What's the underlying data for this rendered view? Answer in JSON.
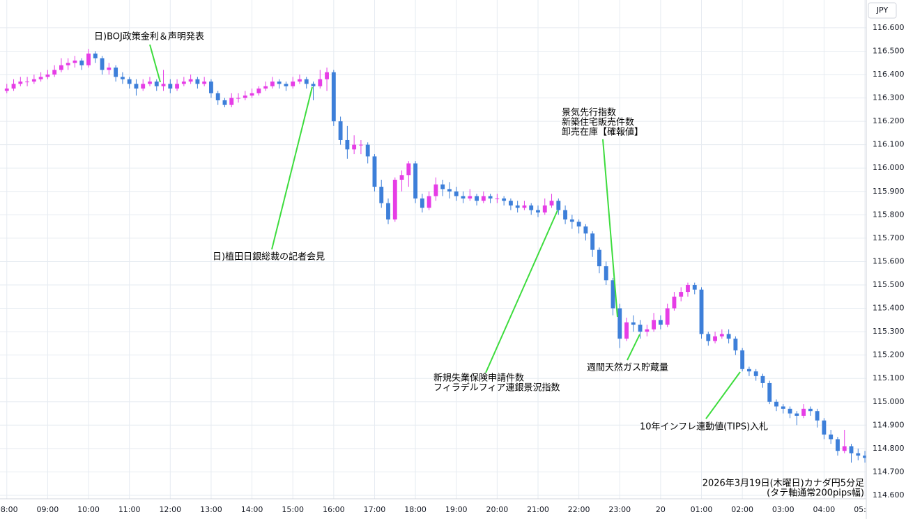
{
  "chart_data": {
    "type": "candlestick",
    "y_axis_label": "JPY",
    "up_color": "#e63de6",
    "down_color": "#3d7fd9",
    "grid": true,
    "xlim": [
      -10,
      1262
    ],
    "ylim": [
      114.585,
      116.719
    ],
    "xticks": [
      {
        "value": 0,
        "label": "08:00"
      },
      {
        "value": 60,
        "label": "09:00"
      },
      {
        "value": 120,
        "label": "10:00"
      },
      {
        "value": 180,
        "label": "11:00"
      },
      {
        "value": 240,
        "label": "12:00"
      },
      {
        "value": 300,
        "label": "13:00"
      },
      {
        "value": 360,
        "label": "14:00"
      },
      {
        "value": 420,
        "label": "15:00"
      },
      {
        "value": 480,
        "label": "16:00"
      },
      {
        "value": 540,
        "label": "17:00"
      },
      {
        "value": 600,
        "label": "18:00"
      },
      {
        "value": 660,
        "label": "19:00"
      },
      {
        "value": 720,
        "label": "20:00"
      },
      {
        "value": 780,
        "label": "21:00"
      },
      {
        "value": 840,
        "label": "22:00"
      },
      {
        "value": 900,
        "label": "23:00"
      },
      {
        "value": 960,
        "label": "20"
      },
      {
        "value": 1020,
        "label": "01:00"
      },
      {
        "value": 1080,
        "label": "02:00"
      },
      {
        "value": 1140,
        "label": "03:00"
      },
      {
        "value": 1200,
        "label": "04:00"
      },
      {
        "value": 1260,
        "label": "05:00"
      }
    ],
    "yticks": [
      {
        "value": 114.6,
        "label": "114.600"
      },
      {
        "value": 114.7,
        "label": "114.700"
      },
      {
        "value": 114.8,
        "label": "114.800"
      },
      {
        "value": 114.9,
        "label": "114.900"
      },
      {
        "value": 115.0,
        "label": "115.000"
      },
      {
        "value": 115.1,
        "label": "115.100"
      },
      {
        "value": 115.2,
        "label": "115.200"
      },
      {
        "value": 115.3,
        "label": "115.300"
      },
      {
        "value": 115.4,
        "label": "115.400"
      },
      {
        "value": 115.5,
        "label": "115.500"
      },
      {
        "value": 115.6,
        "label": "115.600"
      },
      {
        "value": 115.7,
        "label": "115.700"
      },
      {
        "value": 115.8,
        "label": "115.800"
      },
      {
        "value": 115.9,
        "label": "115.900"
      },
      {
        "value": 116.0,
        "label": "116.000"
      },
      {
        "value": 116.1,
        "label": "116.100"
      },
      {
        "value": 116.2,
        "label": "116.200"
      },
      {
        "value": 116.3,
        "label": "116.300"
      },
      {
        "value": 116.4,
        "label": "116.400"
      },
      {
        "value": 116.5,
        "label": "116.500"
      },
      {
        "value": 116.6,
        "label": "116.600"
      }
    ],
    "x": [
      0,
      10,
      20,
      30,
      40,
      50,
      60,
      70,
      80,
      90,
      100,
      110,
      120,
      130,
      140,
      150,
      160,
      170,
      180,
      190,
      200,
      210,
      220,
      230,
      240,
      250,
      260,
      270,
      280,
      290,
      300,
      310,
      320,
      330,
      340,
      350,
      360,
      370,
      380,
      390,
      400,
      410,
      420,
      430,
      440,
      450,
      460,
      470,
      480,
      490,
      500,
      510,
      520,
      530,
      540,
      550,
      560,
      570,
      580,
      590,
      600,
      610,
      620,
      630,
      640,
      650,
      660,
      670,
      680,
      690,
      700,
      710,
      720,
      730,
      740,
      750,
      760,
      770,
      780,
      790,
      800,
      810,
      820,
      830,
      840,
      850,
      860,
      870,
      880,
      890,
      900,
      910,
      920,
      930,
      940,
      950,
      960,
      970,
      980,
      990,
      1000,
      1010,
      1020,
      1030,
      1040,
      1050,
      1060,
      1070,
      1080,
      1090,
      1100,
      1110,
      1120,
      1130,
      1140,
      1150,
      1160,
      1170,
      1180,
      1190,
      1200,
      1210,
      1220,
      1230,
      1240,
      1250,
      1260
    ],
    "candles": [
      [
        116.33,
        116.36,
        116.32,
        116.34
      ],
      [
        116.34,
        116.38,
        116.33,
        116.36
      ],
      [
        116.36,
        116.39,
        116.35,
        116.37
      ],
      [
        116.37,
        116.39,
        116.35,
        116.37
      ],
      [
        116.37,
        116.4,
        116.36,
        116.38
      ],
      [
        116.38,
        116.41,
        116.37,
        116.39
      ],
      [
        116.39,
        116.42,
        116.38,
        116.4
      ],
      [
        116.4,
        116.44,
        116.39,
        116.42
      ],
      [
        116.42,
        116.47,
        116.41,
        116.44
      ],
      [
        116.44,
        116.47,
        116.42,
        116.45
      ],
      [
        116.45,
        116.48,
        116.43,
        116.46
      ],
      [
        116.46,
        116.47,
        116.42,
        116.44
      ],
      [
        116.44,
        116.51,
        116.43,
        116.49
      ],
      [
        116.49,
        116.5,
        116.45,
        116.47
      ],
      [
        116.47,
        116.48,
        116.4,
        116.42
      ],
      [
        116.42,
        116.45,
        116.4,
        116.43
      ],
      [
        116.43,
        116.44,
        116.37,
        116.39
      ],
      [
        116.39,
        116.41,
        116.36,
        116.38
      ],
      [
        116.38,
        116.39,
        116.34,
        116.36
      ],
      [
        116.36,
        116.38,
        116.31,
        116.34
      ],
      [
        116.34,
        116.38,
        116.33,
        116.36
      ],
      [
        116.36,
        116.39,
        116.35,
        116.37
      ],
      [
        116.37,
        116.38,
        116.33,
        116.35
      ],
      [
        116.35,
        116.42,
        116.33,
        116.36
      ],
      [
        116.36,
        116.38,
        116.32,
        116.34
      ],
      [
        116.34,
        116.38,
        116.33,
        116.36
      ],
      [
        116.36,
        116.39,
        116.35,
        116.37
      ],
      [
        116.37,
        116.4,
        116.36,
        116.38
      ],
      [
        116.38,
        116.39,
        116.34,
        116.36
      ],
      [
        116.36,
        116.39,
        116.35,
        116.37
      ],
      [
        116.37,
        116.38,
        116.3,
        116.32
      ],
      [
        116.32,
        116.33,
        116.27,
        116.29
      ],
      [
        116.29,
        116.3,
        116.26,
        116.27
      ],
      [
        116.27,
        116.32,
        116.26,
        116.3
      ],
      [
        116.3,
        116.32,
        116.28,
        116.3
      ],
      [
        116.3,
        116.33,
        116.29,
        116.31
      ],
      [
        116.31,
        116.34,
        116.3,
        116.32
      ],
      [
        116.32,
        116.35,
        116.31,
        116.34
      ],
      [
        116.34,
        116.37,
        116.33,
        116.35
      ],
      [
        116.35,
        116.39,
        116.34,
        116.37
      ],
      [
        116.37,
        116.38,
        116.34,
        116.36
      ],
      [
        116.36,
        116.37,
        116.33,
        116.35
      ],
      [
        116.35,
        116.39,
        116.34,
        116.37
      ],
      [
        116.37,
        116.4,
        116.36,
        116.38
      ],
      [
        116.38,
        116.39,
        116.34,
        116.36
      ],
      [
        116.36,
        116.37,
        116.29,
        116.35
      ],
      [
        116.35,
        116.42,
        116.34,
        116.38
      ],
      [
        116.38,
        116.43,
        116.33,
        116.41
      ],
      [
        116.41,
        116.42,
        116.18,
        116.2
      ],
      [
        116.2,
        116.22,
        116.1,
        116.12
      ],
      [
        116.12,
        116.18,
        116.04,
        116.08
      ],
      [
        116.08,
        116.14,
        116.06,
        116.1
      ],
      [
        116.1,
        116.12,
        116.06,
        116.1
      ],
      [
        116.1,
        116.11,
        116.02,
        116.05
      ],
      [
        116.05,
        116.06,
        115.9,
        115.92
      ],
      [
        115.92,
        115.95,
        115.83,
        115.85
      ],
      [
        115.85,
        115.87,
        115.76,
        115.78
      ],
      [
        115.78,
        115.96,
        115.77,
        115.95
      ],
      [
        115.95,
        115.99,
        115.9,
        115.97
      ],
      [
        115.97,
        116.03,
        115.92,
        116.02
      ],
      [
        116.02,
        116.03,
        115.85,
        115.87
      ],
      [
        115.87,
        115.89,
        115.81,
        115.83
      ],
      [
        115.83,
        115.9,
        115.82,
        115.88
      ],
      [
        115.88,
        115.96,
        115.86,
        115.93
      ],
      [
        115.93,
        115.95,
        115.88,
        115.91
      ],
      [
        115.91,
        115.94,
        115.87,
        115.9
      ],
      [
        115.9,
        115.92,
        115.86,
        115.88
      ],
      [
        115.88,
        115.9,
        115.85,
        115.87
      ],
      [
        115.87,
        115.91,
        115.86,
        115.88
      ],
      [
        115.88,
        115.89,
        115.84,
        115.86
      ],
      [
        115.86,
        115.9,
        115.85,
        115.88
      ],
      [
        115.88,
        115.89,
        115.85,
        115.87
      ],
      [
        115.87,
        115.89,
        115.85,
        115.87
      ],
      [
        115.87,
        115.88,
        115.84,
        115.86
      ],
      [
        115.86,
        115.87,
        115.82,
        115.84
      ],
      [
        115.84,
        115.86,
        115.81,
        115.83
      ],
      [
        115.83,
        115.86,
        115.82,
        115.84
      ],
      [
        115.84,
        115.85,
        115.8,
        115.82
      ],
      [
        115.82,
        115.84,
        115.79,
        115.81
      ],
      [
        115.81,
        115.87,
        115.8,
        115.84
      ],
      [
        115.84,
        115.89,
        115.83,
        115.86
      ],
      [
        115.86,
        115.87,
        115.8,
        115.82
      ],
      [
        115.82,
        115.84,
        115.76,
        115.78
      ],
      [
        115.78,
        115.8,
        115.74,
        115.77
      ],
      [
        115.77,
        115.78,
        115.72,
        115.75
      ],
      [
        115.75,
        115.76,
        115.69,
        115.72
      ],
      [
        115.72,
        115.73,
        115.62,
        115.65
      ],
      [
        115.65,
        115.66,
        115.55,
        115.58
      ],
      [
        115.58,
        115.6,
        115.5,
        115.52
      ],
      [
        115.52,
        115.53,
        115.37,
        115.4
      ],
      [
        115.4,
        115.42,
        115.23,
        115.27
      ],
      [
        115.27,
        115.36,
        115.26,
        115.34
      ],
      [
        115.34,
        115.37,
        115.3,
        115.33
      ],
      [
        115.33,
        115.35,
        115.27,
        115.3
      ],
      [
        115.3,
        115.33,
        115.28,
        115.31
      ],
      [
        115.31,
        115.38,
        115.3,
        115.35
      ],
      [
        115.35,
        115.37,
        115.31,
        115.33
      ],
      [
        115.33,
        115.42,
        115.32,
        115.4
      ],
      [
        115.4,
        115.47,
        115.39,
        115.45
      ],
      [
        115.45,
        115.49,
        115.43,
        115.47
      ],
      [
        115.47,
        115.51,
        115.45,
        115.5
      ],
      [
        115.5,
        115.51,
        115.46,
        115.48
      ],
      [
        115.48,
        115.49,
        115.27,
        115.29
      ],
      [
        115.29,
        115.3,
        115.24,
        115.26
      ],
      [
        115.26,
        115.3,
        115.25,
        115.28
      ],
      [
        115.28,
        115.31,
        115.27,
        115.29
      ],
      [
        115.29,
        115.31,
        115.25,
        115.27
      ],
      [
        115.27,
        115.28,
        115.2,
        115.22
      ],
      [
        115.22,
        115.23,
        115.13,
        115.14
      ],
      [
        115.14,
        115.15,
        115.11,
        115.13
      ],
      [
        115.13,
        115.14,
        115.09,
        115.11
      ],
      [
        115.11,
        115.12,
        115.06,
        115.08
      ],
      [
        115.08,
        115.09,
        114.99,
        115.0
      ],
      [
        115.0,
        115.01,
        114.96,
        114.98
      ],
      [
        114.98,
        114.99,
        114.95,
        114.97
      ],
      [
        114.97,
        114.98,
        114.93,
        114.95
      ],
      [
        114.95,
        114.96,
        114.9,
        114.94
      ],
      [
        114.94,
        114.99,
        114.93,
        114.97
      ],
      [
        114.97,
        114.98,
        114.94,
        114.96
      ],
      [
        114.96,
        114.97,
        114.89,
        114.92
      ],
      [
        114.92,
        114.93,
        114.84,
        114.86
      ],
      [
        114.86,
        114.88,
        114.82,
        114.84
      ],
      [
        114.84,
        114.85,
        114.77,
        114.79
      ],
      [
        114.79,
        114.88,
        114.78,
        114.81
      ],
      [
        114.81,
        114.82,
        114.74,
        114.78
      ],
      [
        114.78,
        114.8,
        114.75,
        114.77
      ],
      [
        114.77,
        114.79,
        114.74,
        114.76
      ]
    ],
    "annotations": [
      [
        "日)BOJ政策金利＆声明発表"
      ],
      [
        "日)植田日銀総裁の記者会見"
      ],
      [
        "景気先行指数",
        "新築住宅販売件数",
        "卸売在庫【確報値】"
      ],
      [
        "新規失業保険申請件数",
        "フィラデルフィア連銀景況指数"
      ],
      [
        "週間天然ガス貯蔵量"
      ],
      [
        "10年インフレ連動値(TIPS)入札"
      ]
    ],
    "note": [
      "2026年3月19日(木曜日)カナダ円5分足",
      "(タテ軸通常200pips幅)"
    ]
  }
}
